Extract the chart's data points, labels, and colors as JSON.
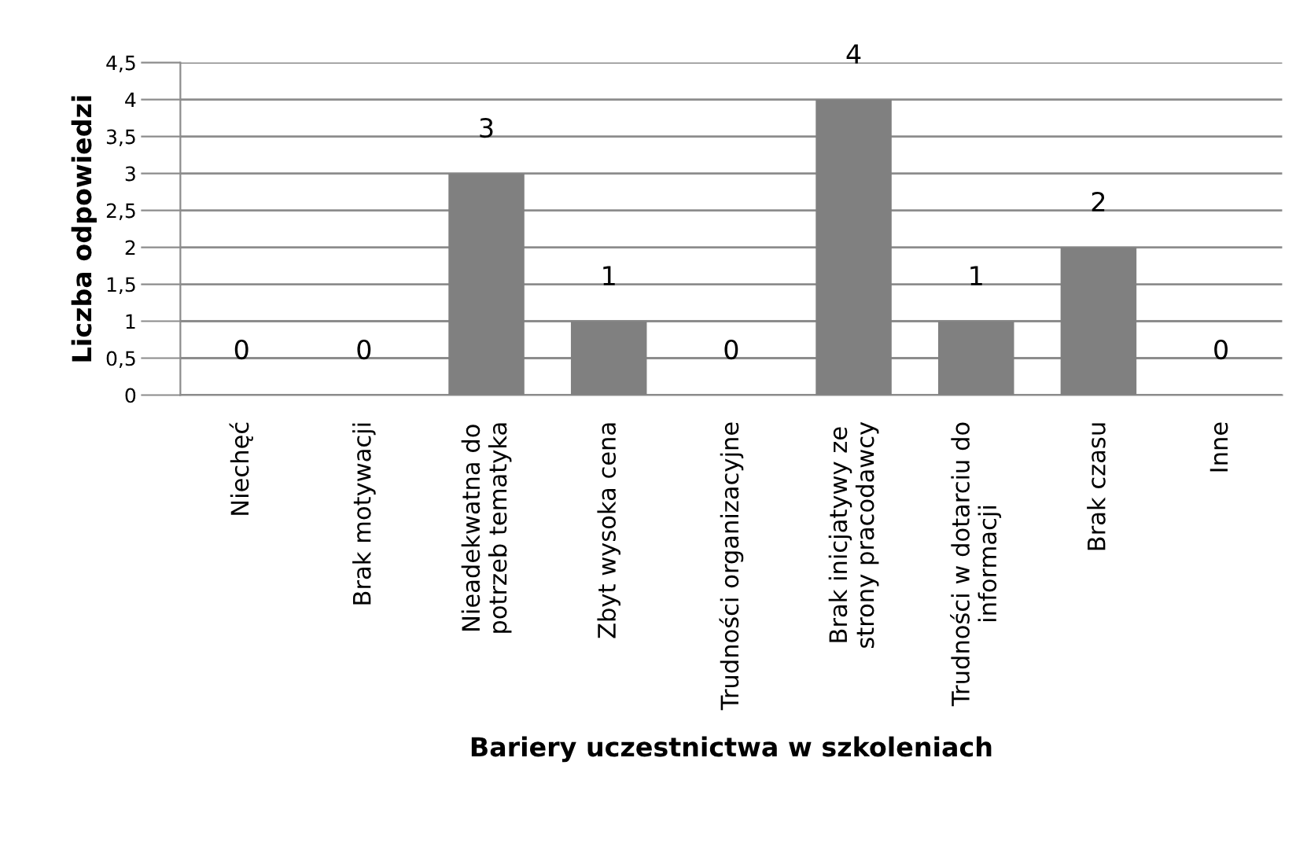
{
  "chart_data": {
    "type": "bar",
    "xlabel": "Bariery uczestnictwa w szkoleniach",
    "ylabel": "Liczba odpowiedzi",
    "categories": [
      "Niechęć",
      "Brak motywacji",
      "Nieadekwatna do\npotrzeb tematyka",
      "Zbyt wysoka cena",
      "Trudności organizacyjne",
      "Brak inicjatywy ze\nstrony pracodawcy",
      "Trudności w dotarciu do\ninformacji",
      "Brak czasu",
      "Inne"
    ],
    "values": [
      0,
      0,
      3,
      1,
      0,
      4,
      1,
      2,
      0
    ],
    "color": "#808080",
    "ylim": [
      0,
      4.5
    ],
    "yticks": [
      0,
      {
        "value": 0.5,
        "label": "0,5"
      },
      1,
      {
        "value": 1.5,
        "label": "1,5"
      },
      2,
      {
        "value": 2.5,
        "label": "2,5"
      },
      3,
      {
        "value": 3.5,
        "label": "3,5"
      },
      4,
      {
        "value": 4.5,
        "label": "4,5"
      }
    ],
    "grid": "y",
    "data_labels": true,
    "legend": false
  }
}
